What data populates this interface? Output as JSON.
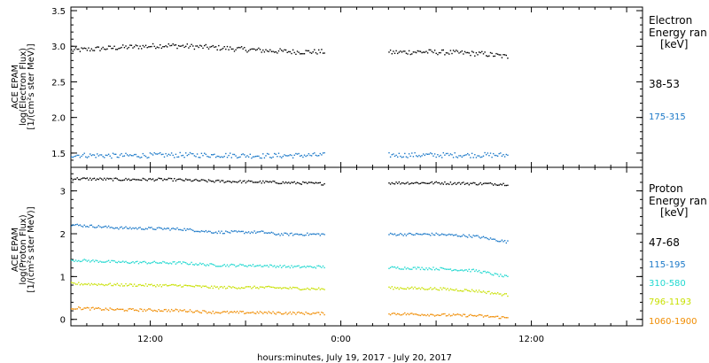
{
  "xlabel": "hours:minutes, July 19, 2017 - July 20, 2017",
  "colors": {
    "black": "#000000",
    "blue": "#1a78c8",
    "cyan": "#20d8d0",
    "yellow": "#c8e000",
    "orange": "#f08c00"
  },
  "chart_data": [
    {
      "type": "scatter",
      "panel": "electron",
      "ylabel": [
        "ACE EPAM",
        "log(Electron Flux)",
        "[1/(cm²s ster MeV)]"
      ],
      "ylim": [
        1.3,
        3.55
      ],
      "yticks": [
        "1.5",
        "2.0",
        "2.5",
        "3.0",
        "3.5"
      ],
      "legend_title": [
        "Electron",
        "Energy ran",
        "[keV]"
      ],
      "gap": [
        "23:20",
        "03:00"
      ],
      "series": [
        {
          "name": "38-53",
          "color": "black",
          "segments": [
            {
              "x": [
                "07:00",
                "10:00",
                "13:00",
                "16:00",
                "19:00",
                "21:00",
                "23:00"
              ],
              "y": [
                2.95,
                2.99,
                3.02,
                2.99,
                2.95,
                2.93,
                2.93
              ]
            },
            {
              "x": [
                "03:00",
                "05:00",
                "07:00",
                "09:00",
                "10:30"
              ],
              "y": [
                2.92,
                2.93,
                2.92,
                2.9,
                2.86
              ]
            }
          ]
        },
        {
          "name": "175-315",
          "color": "blue",
          "segments": [
            {
              "x": [
                "07:00",
                "10:00",
                "13:00",
                "16:00",
                "19:00",
                "23:00"
              ],
              "y": [
                1.48,
                1.47,
                1.48,
                1.48,
                1.47,
                1.48
              ]
            },
            {
              "x": [
                "03:00",
                "06:00",
                "09:00",
                "10:30"
              ],
              "y": [
                1.48,
                1.48,
                1.48,
                1.48
              ]
            }
          ]
        }
      ]
    },
    {
      "type": "scatter",
      "panel": "proton",
      "ylabel": [
        "ACE EPAM",
        "log(Proton Flux)",
        "[1/(cm²s ster MeV)]"
      ],
      "ylim": [
        -0.15,
        3.55
      ],
      "yticks": [
        "0",
        "1",
        "2",
        "3"
      ],
      "legend_title": [
        "Proton",
        "Energy ran",
        "[keV]"
      ],
      "gap": [
        "23:20",
        "03:00"
      ],
      "series": [
        {
          "name": "47-68",
          "color": "black",
          "segments": [
            {
              "x": [
                "07:00",
                "10:00",
                "13:00",
                "16:00",
                "19:00",
                "21:00",
                "23:00"
              ],
              "y": [
                3.3,
                3.28,
                3.28,
                3.24,
                3.22,
                3.2,
                3.18
              ]
            },
            {
              "x": [
                "03:00",
                "06:00",
                "09:00",
                "10:30"
              ],
              "y": [
                3.2,
                3.2,
                3.18,
                3.17
              ]
            }
          ]
        },
        {
          "name": "115-195",
          "color": "blue",
          "segments": [
            {
              "x": [
                "07:00",
                "10:00",
                "14:00",
                "16:00",
                "19:00",
                "20:00",
                "23:00"
              ],
              "y": [
                2.22,
                2.15,
                2.12,
                2.05,
                2.05,
                2.0,
                2.0
              ]
            },
            {
              "x": [
                "03:00",
                "06:00",
                "08:30",
                "10:30"
              ],
              "y": [
                2.0,
                2.0,
                1.95,
                1.82
              ]
            }
          ]
        },
        {
          "name": "310-580",
          "color": "cyan",
          "segments": [
            {
              "x": [
                "07:00",
                "10:00",
                "14:00",
                "16:00",
                "19:00",
                "21:00",
                "23:00"
              ],
              "y": [
                1.4,
                1.35,
                1.33,
                1.28,
                1.27,
                1.24,
                1.24
              ]
            },
            {
              "x": [
                "03:00",
                "06:00",
                "08:30",
                "10:30"
              ],
              "y": [
                1.22,
                1.2,
                1.15,
                1.0
              ]
            }
          ]
        },
        {
          "name": "796-1193",
          "color": "yellow",
          "segments": [
            {
              "x": [
                "07:00",
                "10:00",
                "14:00",
                "16:00",
                "19:00",
                "23:00"
              ],
              "y": [
                0.85,
                0.82,
                0.8,
                0.76,
                0.76,
                0.72
              ]
            },
            {
              "x": [
                "03:00",
                "06:00",
                "08:30",
                "10:30"
              ],
              "y": [
                0.75,
                0.73,
                0.68,
                0.58
              ]
            }
          ]
        },
        {
          "name": "1060-1900",
          "color": "orange",
          "segments": [
            {
              "x": [
                "07:00",
                "10:00",
                "14:00",
                "16:00",
                "19:00",
                "23:00"
              ],
              "y": [
                0.28,
                0.24,
                0.22,
                0.18,
                0.17,
                0.15
              ]
            },
            {
              "x": [
                "03:00",
                "06:00",
                "08:30",
                "10:30"
              ],
              "y": [
                0.15,
                0.12,
                0.1,
                0.05
              ]
            }
          ]
        }
      ]
    }
  ],
  "xaxis": {
    "start": "2017-07-19 07:00",
    "end": "2017-07-20 19:00",
    "labels": [
      "12:00",
      "0:00",
      "12:00"
    ]
  }
}
